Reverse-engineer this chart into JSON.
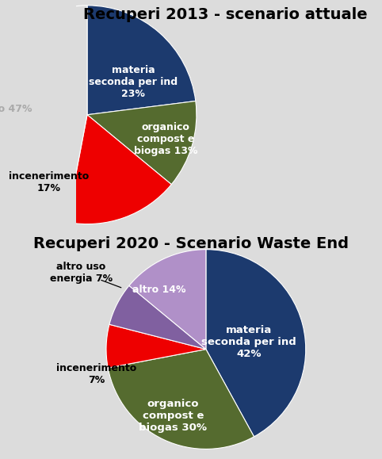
{
  "title1": "Recuperi 2013 - scenario attuale",
  "title2": "Recuperi 2020 - Scenario Waste End",
  "bg1": "#dcdcdc",
  "bg2": "#cce8f5",
  "chart1": {
    "values": [
      23,
      13,
      17,
      47
    ],
    "colors": [
      "#1c3a6e",
      "#556b2f",
      "#ee0000",
      "#dcdcdc"
    ],
    "startangle": 90
  },
  "chart2": {
    "values": [
      42,
      30,
      7,
      7,
      14
    ],
    "colors": [
      "#1c3a6e",
      "#556b2f",
      "#ee0000",
      "#8060a0",
      "#b090c8"
    ],
    "startangle": 90
  },
  "title1_fontsize": 14,
  "title2_fontsize": 14,
  "label_fontsize": 9
}
